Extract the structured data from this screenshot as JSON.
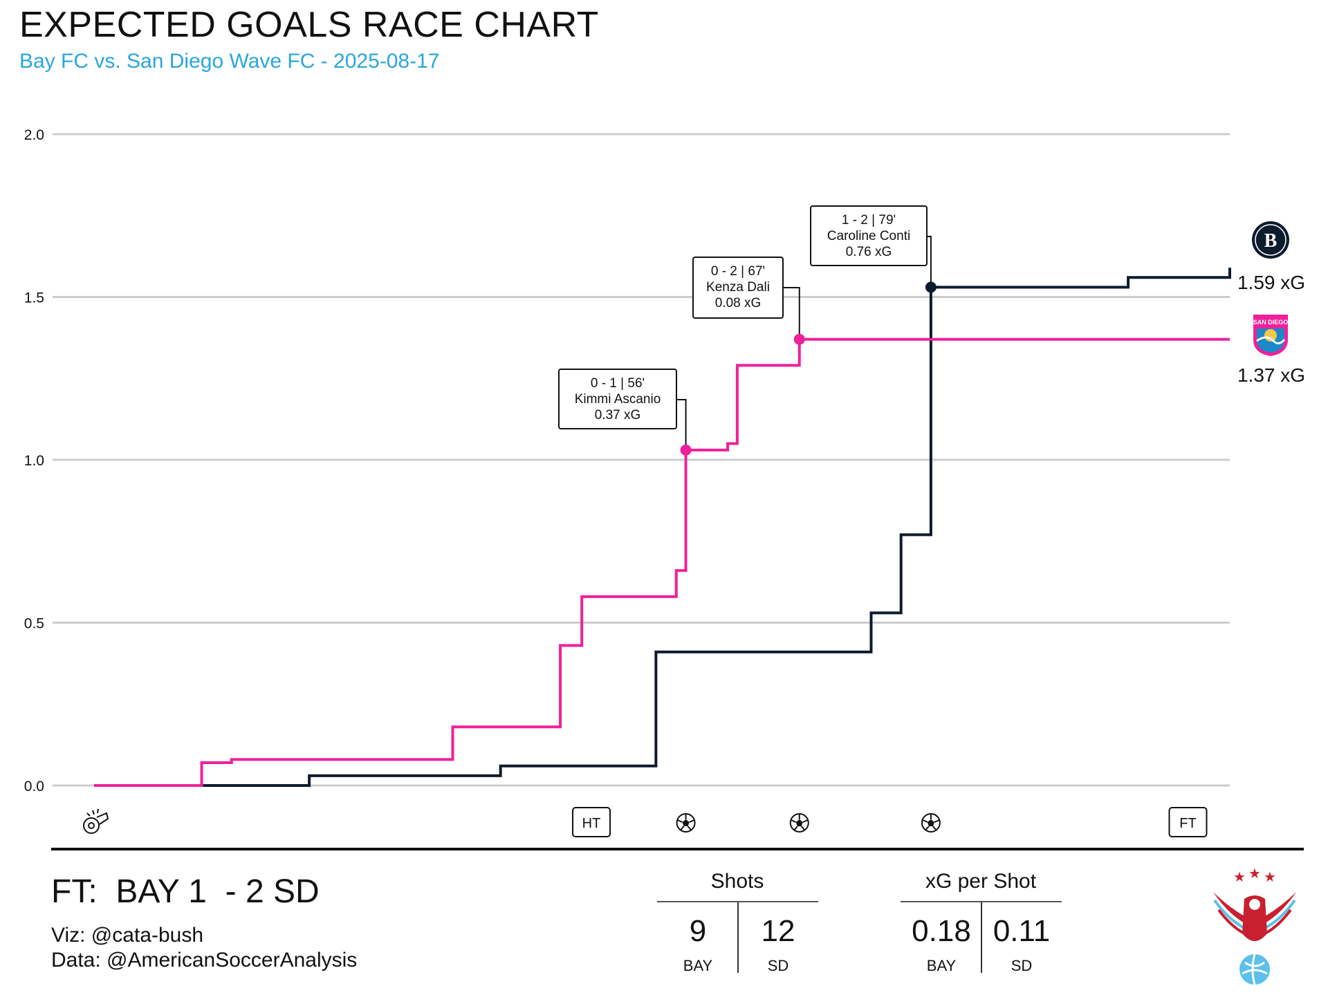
{
  "header": {
    "title": "EXPECTED GOALS RACE CHART",
    "subtitle": "Bay FC vs. San Diego Wave FC - 2025-08-17"
  },
  "colors": {
    "bay": "#0d1b2e",
    "sd": "#f0209a",
    "grid": "#cccccc",
    "subtitle": "#2aa6dc"
  },
  "chart_data": {
    "type": "line",
    "step": true,
    "title": "EXPECTED GOALS RACE CHART",
    "subtitle": "Bay FC vs. San Diego Wave FC - 2025-08-17",
    "xlabel": "",
    "ylabel": "",
    "xlim": [
      0,
      95
    ],
    "ylim": [
      0,
      2.0
    ],
    "yticks": [
      "0.0",
      "0.5",
      "1.0",
      "1.5",
      "2.0"
    ],
    "grid": true,
    "series": [
      {
        "name": "BAY",
        "color": "#0d1b2e",
        "points": [
          [
            9,
            0
          ],
          [
            18,
            0.03
          ],
          [
            34,
            0.06
          ],
          [
            47,
            0.41
          ],
          [
            65,
            0.53
          ],
          [
            67.5,
            0.77
          ],
          [
            70,
            1.53
          ],
          [
            86.5,
            1.56
          ],
          [
            95,
            1.59
          ]
        ],
        "end_label": "1.59 xG"
      },
      {
        "name": "SD",
        "color": "#f0209a",
        "points": [
          [
            0,
            0
          ],
          [
            9,
            0.07
          ],
          [
            11.5,
            0.08
          ],
          [
            30,
            0.18
          ],
          [
            39,
            0.43
          ],
          [
            40.8,
            0.58
          ],
          [
            48.7,
            0.66
          ],
          [
            49.5,
            1.03
          ],
          [
            53,
            1.05
          ],
          [
            53.8,
            1.29
          ],
          [
            59,
            1.37
          ],
          [
            95,
            1.37
          ]
        ],
        "end_label": "1.37 xG"
      }
    ],
    "goals": [
      {
        "team": "SD",
        "x": 49.5,
        "y": 1.03,
        "score": "0 - 1  |  56'",
        "player": "Kimmi Ascanio",
        "xg": "0.37 xG"
      },
      {
        "team": "SD",
        "x": 59,
        "y": 1.37,
        "score": "0 - 2  |  67'",
        "player": "Kenza Dali",
        "xg": "0.08 xG"
      },
      {
        "team": "BAY",
        "x": 70,
        "y": 1.53,
        "score": "1 - 2  |  79'",
        "player": "Caroline Conti",
        "xg": "0.76 xG"
      }
    ],
    "markers": [
      {
        "type": "kickoff",
        "icon": "whistle-icon",
        "x": 0
      },
      {
        "type": "HT",
        "label": "HT",
        "x": 41.6
      },
      {
        "type": "goal",
        "icon": "soccer-ball-icon",
        "x": 49.5
      },
      {
        "type": "goal",
        "icon": "soccer-ball-icon",
        "x": 59
      },
      {
        "type": "goal",
        "icon": "soccer-ball-icon",
        "x": 70
      },
      {
        "type": "FT",
        "label": "FT",
        "x": 91.5
      }
    ]
  },
  "footer": {
    "score": "FT:  BAY 1  - 2 SD",
    "viz": "Viz: @cata-bush",
    "data": "Data: @AmericanSoccerAnalysis",
    "shots": {
      "title": "Shots",
      "bay": "9",
      "sd": "12",
      "bay_label": "BAY",
      "sd_label": "SD"
    },
    "xg_per_shot": {
      "title": "xG per Shot",
      "bay": "0.18",
      "sd": "0.11",
      "bay_label": "BAY",
      "sd_label": "SD"
    }
  }
}
